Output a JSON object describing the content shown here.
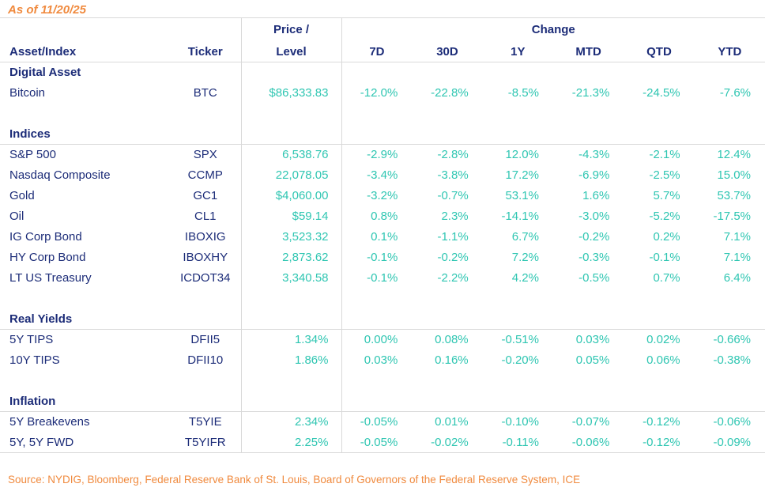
{
  "meta": {
    "as_of_label": "As of 11/20/25",
    "source_label": "Source: NYDIG, Bloomberg, Federal Reserve Bank of St. Louis, Board of Governors of the Federal Reserve System, ICE"
  },
  "colors": {
    "navy": "#1c2c78",
    "teal": "#2fc6b2",
    "orange": "#f08a3e",
    "border": "#d9d9d9"
  },
  "table": {
    "col_headers": {
      "asset": "Asset/Index",
      "ticker": "Ticker",
      "price_line1": "Price /",
      "price_line2": "Level",
      "change_group": "Change",
      "change_cols": [
        "7D",
        "30D",
        "1Y",
        "MTD",
        "QTD",
        "YTD"
      ]
    },
    "sections": [
      {
        "label": "Digital Asset",
        "rows": [
          {
            "asset": "Bitcoin",
            "ticker": "BTC",
            "price": "$86,333.83",
            "changes": [
              "-12.0%",
              "-22.8%",
              "-8.5%",
              "-21.3%",
              "-24.5%",
              "-7.6%"
            ]
          }
        ]
      },
      {
        "label": "Indices",
        "rows": [
          {
            "asset": "S&P 500",
            "ticker": "SPX",
            "price": "6,538.76",
            "changes": [
              "-2.9%",
              "-2.8%",
              "12.0%",
              "-4.3%",
              "-2.1%",
              "12.4%"
            ]
          },
          {
            "asset": "Nasdaq Composite",
            "ticker": "CCMP",
            "price": "22,078.05",
            "changes": [
              "-3.4%",
              "-3.8%",
              "17.2%",
              "-6.9%",
              "-2.5%",
              "15.0%"
            ]
          },
          {
            "asset": "Gold",
            "ticker": "GC1",
            "price": "$4,060.00",
            "changes": [
              "-3.2%",
              "-0.7%",
              "53.1%",
              "1.6%",
              "5.7%",
              "53.7%"
            ]
          },
          {
            "asset": "Oil",
            "ticker": "CL1",
            "price": "$59.14",
            "changes": [
              "0.8%",
              "2.3%",
              "-14.1%",
              "-3.0%",
              "-5.2%",
              "-17.5%"
            ]
          },
          {
            "asset": "IG Corp Bond",
            "ticker": "IBOXIG",
            "price": "3,523.32",
            "changes": [
              "0.1%",
              "-1.1%",
              "6.7%",
              "-0.2%",
              "0.2%",
              "7.1%"
            ]
          },
          {
            "asset": "HY Corp Bond",
            "ticker": "IBOXHY",
            "price": "2,873.62",
            "changes": [
              "-0.1%",
              "-0.2%",
              "7.2%",
              "-0.3%",
              "-0.1%",
              "7.1%"
            ]
          },
          {
            "asset": "LT US Treasury",
            "ticker": "ICDOT34",
            "price": "3,340.58",
            "changes": [
              "-0.1%",
              "-2.2%",
              "4.2%",
              "-0.5%",
              "0.7%",
              "6.4%"
            ]
          }
        ]
      },
      {
        "label": "Real Yields",
        "rows": [
          {
            "asset": "5Y TIPS",
            "ticker": "DFII5",
            "price": "1.34%",
            "changes": [
              "0.00%",
              "0.08%",
              "-0.51%",
              "0.03%",
              "0.02%",
              "-0.66%"
            ]
          },
          {
            "asset": "10Y TIPS",
            "ticker": "DFII10",
            "price": "1.86%",
            "changes": [
              "0.03%",
              "0.16%",
              "-0.20%",
              "0.05%",
              "0.06%",
              "-0.38%"
            ]
          }
        ]
      },
      {
        "label": "Inflation",
        "rows": [
          {
            "asset": "5Y Breakevens",
            "ticker": "T5YIE",
            "price": "2.34%",
            "changes": [
              "-0.05%",
              "0.01%",
              "-0.10%",
              "-0.07%",
              "-0.12%",
              "-0.06%"
            ]
          },
          {
            "asset": "5Y, 5Y FWD",
            "ticker": "T5YIFR",
            "price": "2.25%",
            "changes": [
              "-0.05%",
              "-0.02%",
              "-0.11%",
              "-0.06%",
              "-0.12%",
              "-0.09%"
            ]
          }
        ]
      }
    ]
  },
  "chart_data": {
    "type": "table",
    "title": "As of 11/20/25",
    "columns": [
      "Asset/Index",
      "Ticker",
      "Price / Level",
      "7D",
      "30D",
      "1Y",
      "MTD",
      "QTD",
      "YTD"
    ],
    "rows": [
      [
        "Bitcoin",
        "BTC",
        "$86,333.83",
        "-12.0%",
        "-22.8%",
        "-8.5%",
        "-21.3%",
        "-24.5%",
        "-7.6%"
      ],
      [
        "S&P 500",
        "SPX",
        "6,538.76",
        "-2.9%",
        "-2.8%",
        "12.0%",
        "-4.3%",
        "-2.1%",
        "12.4%"
      ],
      [
        "Nasdaq Composite",
        "CCMP",
        "22,078.05",
        "-3.4%",
        "-3.8%",
        "17.2%",
        "-6.9%",
        "-2.5%",
        "15.0%"
      ],
      [
        "Gold",
        "GC1",
        "$4,060.00",
        "-3.2%",
        "-0.7%",
        "53.1%",
        "1.6%",
        "5.7%",
        "53.7%"
      ],
      [
        "Oil",
        "CL1",
        "$59.14",
        "0.8%",
        "2.3%",
        "-14.1%",
        "-3.0%",
        "-5.2%",
        "-17.5%"
      ],
      [
        "IG Corp Bond",
        "IBOXIG",
        "3,523.32",
        "0.1%",
        "-1.1%",
        "6.7%",
        "-0.2%",
        "0.2%",
        "7.1%"
      ],
      [
        "HY Corp Bond",
        "IBOXHY",
        "2,873.62",
        "-0.1%",
        "-0.2%",
        "7.2%",
        "-0.3%",
        "-0.1%",
        "7.1%"
      ],
      [
        "LT US Treasury",
        "ICDOT34",
        "3,340.58",
        "-0.1%",
        "-2.2%",
        "4.2%",
        "-0.5%",
        "0.7%",
        "6.4%"
      ],
      [
        "5Y TIPS",
        "DFII5",
        "1.34%",
        "0.00%",
        "0.08%",
        "-0.51%",
        "0.03%",
        "0.02%",
        "-0.66%"
      ],
      [
        "10Y TIPS",
        "DFII10",
        "1.86%",
        "0.03%",
        "0.16%",
        "-0.20%",
        "0.05%",
        "0.06%",
        "-0.38%"
      ],
      [
        "5Y Breakevens",
        "T5YIE",
        "2.34%",
        "-0.05%",
        "0.01%",
        "-0.10%",
        "-0.07%",
        "-0.12%",
        "-0.06%"
      ],
      [
        "5Y, 5Y FWD",
        "T5YIFR",
        "2.25%",
        "-0.05%",
        "-0.02%",
        "-0.11%",
        "-0.06%",
        "-0.12%",
        "-0.09%"
      ]
    ],
    "section_groups": [
      "Digital Asset",
      "Indices",
      "Real Yields",
      "Inflation"
    ],
    "source": "Source: NYDIG, Bloomberg, Federal Reserve Bank of St. Louis, Board of Governors of the Federal Reserve System, ICE"
  }
}
